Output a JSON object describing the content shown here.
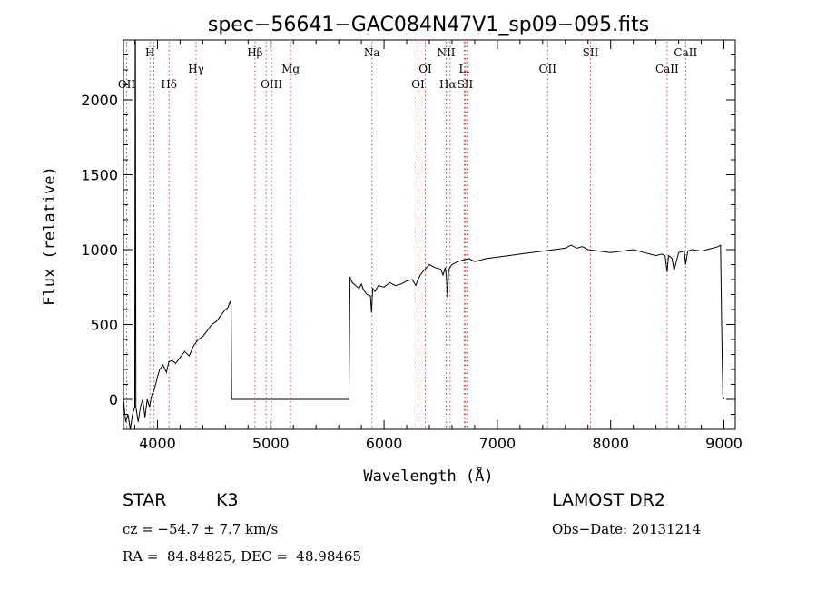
{
  "chart_data": {
    "type": "line",
    "title": "spec−56641−GAC084N47V1_sp09−095.fits",
    "xlabel": "Wavelength (Å)",
    "ylabel": "Flux (relative)",
    "xlim": [
      3700,
      9100
    ],
    "ylim": [
      -200,
      2400
    ],
    "xticks": [
      4000,
      5000,
      6000,
      7000,
      8000,
      9000
    ],
    "yticks": [
      0,
      500,
      1000,
      1500,
      2000
    ],
    "grid": false,
    "series": [
      {
        "x": [
          3700,
          3720,
          3740,
          3760,
          3780,
          3800,
          3803,
          3806,
          3810,
          3830,
          3850,
          3870,
          3890,
          3910,
          3930,
          3950,
          3970,
          3990,
          4000,
          4020,
          4050,
          4080,
          4100,
          4130,
          4160,
          4200,
          4240,
          4280,
          4320,
          4360,
          4400,
          4440,
          4480,
          4520,
          4560,
          4600,
          4620,
          4640,
          4650,
          4655,
          4700,
          4800,
          5000,
          5200,
          5400,
          5600,
          5690,
          5700,
          5705,
          5720,
          5750,
          5780,
          5800,
          5820,
          5850,
          5880,
          5890,
          5900,
          5920,
          5950,
          6000,
          6050,
          6100,
          6150,
          6200,
          6250,
          6280,
          6300,
          6320,
          6350,
          6400,
          6450,
          6500,
          6520,
          6540,
          6550,
          6560,
          6570,
          6580,
          6600,
          6650,
          6700,
          6750,
          6800,
          6900,
          7000,
          7100,
          7200,
          7300,
          7400,
          7500,
          7600,
          7650,
          7700,
          7750,
          7800,
          7900,
          8000,
          8100,
          8200,
          8300,
          8400,
          8450,
          8480,
          8498,
          8510,
          8530,
          8542,
          8560,
          8600,
          8650,
          8662,
          8680,
          8720,
          8800,
          8850,
          8900,
          8950,
          8970,
          8980,
          8990,
          9000
        ],
        "y": [
          0,
          -150,
          -100,
          -200,
          -100,
          -50,
          2400,
          2380,
          -50,
          -150,
          -50,
          0,
          -120,
          0,
          -50,
          30,
          60,
          120,
          150,
          200,
          230,
          180,
          250,
          260,
          240,
          280,
          320,
          290,
          360,
          400,
          420,
          460,
          500,
          520,
          560,
          600,
          610,
          650,
          630,
          0,
          0,
          0,
          0,
          0,
          0,
          0,
          0,
          820,
          800,
          780,
          760,
          740,
          770,
          730,
          700,
          690,
          580,
          740,
          720,
          760,
          750,
          780,
          760,
          770,
          790,
          800,
          760,
          800,
          830,
          860,
          900,
          880,
          870,
          830,
          880,
          820,
          680,
          860,
          880,
          900,
          920,
          930,
          940,
          920,
          940,
          950,
          960,
          970,
          980,
          990,
          1000,
          1010,
          1030,
          1010,
          1020,
          1000,
          990,
          980,
          990,
          1000,
          980,
          960,
          970,
          960,
          850,
          960,
          950,
          940,
          860,
          980,
          990,
          900,
          990,
          1000,
          990,
          1000,
          1010,
          1020,
          1030,
          500,
          30,
          0
        ]
      }
    ],
    "line_markers": [
      {
        "w": 3728,
        "label": "OII",
        "row": 2
      },
      {
        "w": 3934,
        "label": "H",
        "row": 0
      },
      {
        "w": 3969,
        "label": "",
        "row": 0
      },
      {
        "w": 4102,
        "label": "Hδ",
        "row": 2
      },
      {
        "w": 4341,
        "label": "Hγ",
        "row": 1
      },
      {
        "w": 4861,
        "label": "Hβ",
        "row": 0
      },
      {
        "w": 4959,
        "label": "",
        "row": 2
      },
      {
        "w": 5007,
        "label": "OIII",
        "row": 2
      },
      {
        "w": 5175,
        "label": "Mg",
        "row": 1
      },
      {
        "w": 5893,
        "label": "Na",
        "row": 0
      },
      {
        "w": 6300,
        "label": "OI",
        "row": 2
      },
      {
        "w": 6364,
        "label": "OI",
        "row": 1
      },
      {
        "w": 6548,
        "label": "NII",
        "row": 0
      },
      {
        "w": 6563,
        "label": "Hα",
        "row": 2
      },
      {
        "w": 6583,
        "label": "",
        "row": 0
      },
      {
        "w": 6708,
        "label": "Li",
        "row": 1
      },
      {
        "w": 6716,
        "label": "SII",
        "row": 2
      },
      {
        "w": 6731,
        "label": "",
        "row": 2
      },
      {
        "w": 7444,
        "label": "OII",
        "row": 1
      },
      {
        "w": 7822,
        "label": "SII",
        "row": 0
      },
      {
        "w": 8498,
        "label": "CaII",
        "row": 1
      },
      {
        "w": 8662,
        "label": "CaII",
        "row": 0
      }
    ]
  },
  "info": {
    "class": "STAR",
    "subclass": "K3",
    "survey": "LAMOST DR2",
    "cz": "cz = −54.7 ± 7.7 km/s",
    "obs_date": "Obs−Date: 20131214",
    "radec": "RA =  84.84825, DEC =  48.98465"
  },
  "colors": {
    "spectrum": "#000000",
    "marker": "#d24040",
    "axis": "#000000"
  }
}
